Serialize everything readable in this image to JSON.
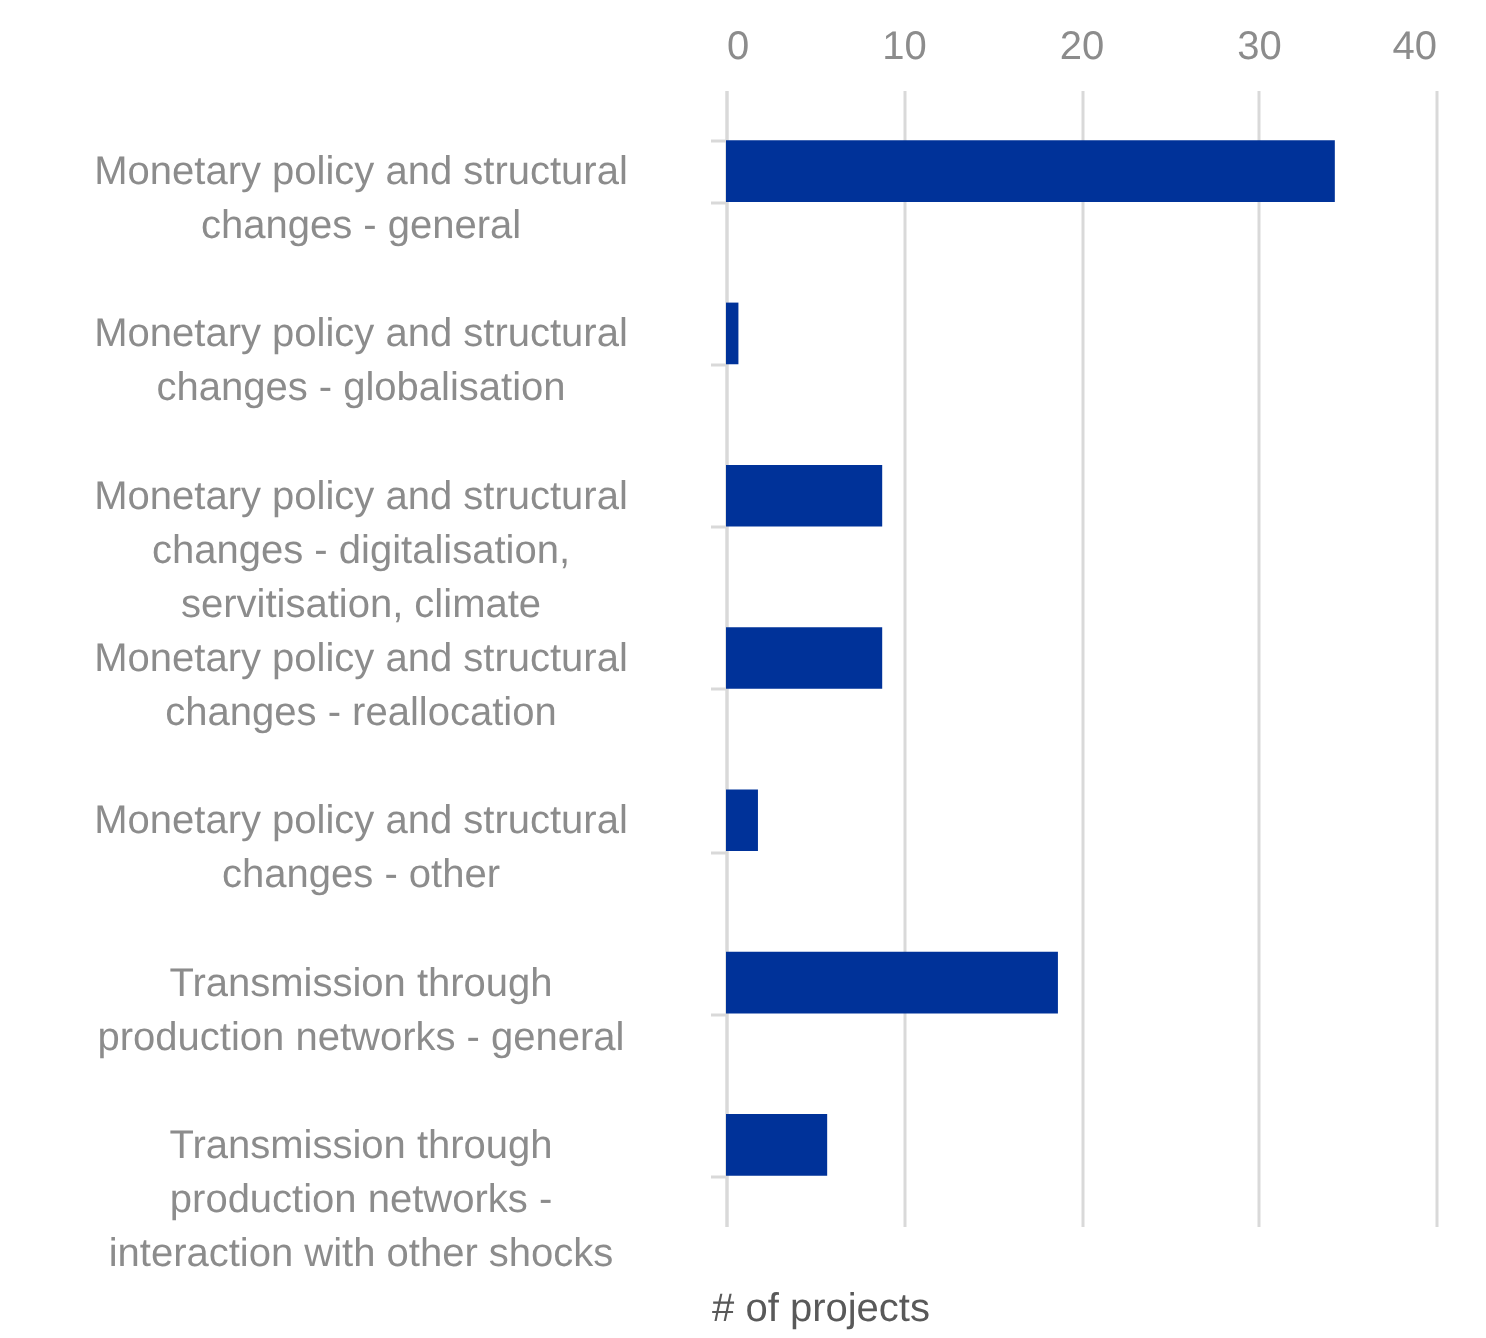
{
  "chart_data": {
    "type": "bar",
    "orientation": "horizontal",
    "xlabel": "# of projects",
    "categories": [
      "Monetary policy and structural changes - general",
      "Monetary policy and structural changes  - globalisation",
      "Monetary policy and structural changes - digitalisation, servitisation, climate",
      "Monetary policy and structural changes - reallocation",
      "Monetary policy and structural changes - other",
      "Transmission through production networks -  general",
      "Transmission through production networks - interaction with other shocks"
    ],
    "values": [
      34.3,
      0.7,
      8.8,
      8.8,
      1.8,
      18.7,
      5.7
    ],
    "color": "#003299",
    "xlim": [
      0,
      40
    ],
    "xticks": [
      0,
      10,
      20,
      30,
      40
    ],
    "grid": "x"
  }
}
